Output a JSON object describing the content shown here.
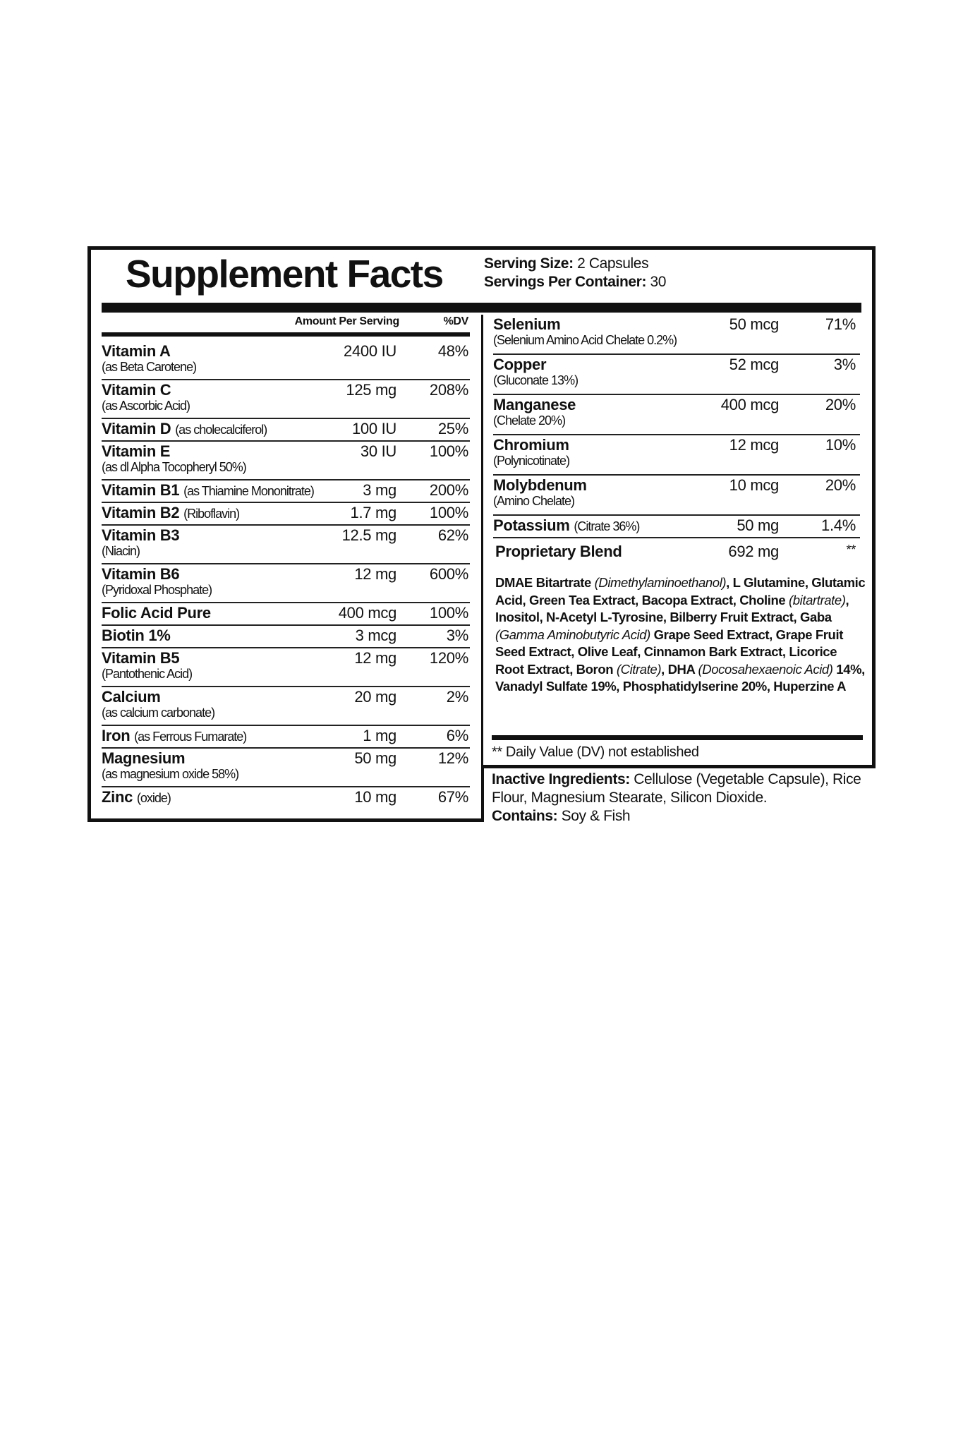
{
  "title": "Supplement Facts",
  "serving": {
    "size_label": "Serving Size:",
    "size_value": "2 Capsules",
    "per_container_label": "Servings Per Container:",
    "per_container_value": "30"
  },
  "column_headers": {
    "amount": "Amount Per Serving",
    "dv": "%DV"
  },
  "left_rows": [
    {
      "name": "Vitamin A",
      "sub": "(as Beta Carotene)",
      "inline": false,
      "amount": "2400 IU",
      "dv": "48%"
    },
    {
      "name": "Vitamin C",
      "sub": "(as Ascorbic Acid)",
      "inline": false,
      "amount": "125 mg",
      "dv": "208%"
    },
    {
      "name": "Vitamin D",
      "sub": "(as cholecalciferol)",
      "inline": true,
      "amount": "100 IU",
      "dv": "25%"
    },
    {
      "name": "Vitamin E",
      "sub": "(as dl Alpha Tocopheryl 50%)",
      "inline": false,
      "amount": "30 IU",
      "dv": "100%"
    },
    {
      "name": "Vitamin B1",
      "sub": "(as Thiamine Mononitrate)",
      "inline": true,
      "amount": "3 mg",
      "dv": "200%"
    },
    {
      "name": "Vitamin B2",
      "sub": "(Riboflavin)",
      "inline": true,
      "amount": "1.7 mg",
      "dv": "100%"
    },
    {
      "name": "Vitamin B3",
      "sub": "(Niacin)",
      "inline": false,
      "amount": "12.5 mg",
      "dv": "62%"
    },
    {
      "name": "Vitamin B6",
      "sub": "(Pyridoxal Phosphate)",
      "inline": false,
      "amount": "12 mg",
      "dv": "600%"
    },
    {
      "name": "Folic Acid Pure",
      "sub": "",
      "inline": true,
      "amount": "400 mcg",
      "dv": "100%"
    },
    {
      "name": "Biotin 1%",
      "sub": "",
      "inline": true,
      "amount": "3 mcg",
      "dv": "3%"
    },
    {
      "name": "Vitamin B5",
      "sub": "(Pantothenic Acid)",
      "inline": false,
      "amount": "12 mg",
      "dv": "120%"
    },
    {
      "name": "Calcium",
      "sub": "(as calcium carbonate)",
      "inline": false,
      "amount": "20 mg",
      "dv": "2%"
    },
    {
      "name": "Iron",
      "sub": "(as Ferrous Fumarate)",
      "inline": true,
      "amount": "1 mg",
      "dv": "6%"
    },
    {
      "name": "Magnesium",
      "sub": "(as magnesium oxide 58%)",
      "inline": false,
      "amount": "50 mg",
      "dv": "12%"
    },
    {
      "name": "Zinc",
      "sub": "(oxide)",
      "inline": true,
      "amount": "10 mg",
      "dv": "67%"
    }
  ],
  "right_rows": [
    {
      "name": "Selenium",
      "sub": "(Selenium Amino Acid Chelate 0.2%)",
      "inline": false,
      "amount": "50 mcg",
      "dv": "71%"
    },
    {
      "name": "Copper",
      "sub": "(Gluconate 13%)",
      "inline": false,
      "amount": "52 mcg",
      "dv": "3%"
    },
    {
      "name": "Manganese",
      "sub": "(Chelate 20%)",
      "inline": false,
      "amount": "400 mcg",
      "dv": "20%"
    },
    {
      "name": "Chromium",
      "sub": "(Polynicotinate)",
      "inline": false,
      "amount": "12 mcg",
      "dv": "10%"
    },
    {
      "name": "Molybdenum",
      "sub": "(Amino Chelate)",
      "inline": false,
      "amount": "10 mcg",
      "dv": "20%"
    },
    {
      "name": "Potassium",
      "sub": "(Citrate 36%)",
      "inline": true,
      "amount": "50 mg",
      "dv": "1.4%"
    }
  ],
  "blend": {
    "name": "Proprietary Blend",
    "amount": "692 mg",
    "dv": "**",
    "ingredients": [
      {
        "t": "DMAE Bitartrate ",
        "i": false
      },
      {
        "t": "(Dimethylaminoethanol)",
        "i": true
      },
      {
        "t": ", L Glutamine, Glutamic Acid, Green Tea Extract, Bacopa Extract, Choline ",
        "i": false
      },
      {
        "t": "(bitartrate)",
        "i": true
      },
      {
        "t": ", Inositol, N-Acetyl L-Tyrosine, Bilberry Fruit Extract, Gaba ",
        "i": false
      },
      {
        "t": "(Gamma Aminobutyric Acid)",
        "i": true
      },
      {
        "t": " Grape Seed Extract, Grape Fruit Seed Extract, Olive Leaf, Cinnamon Bark Extract, Licorice Root Extract, Boron ",
        "i": false
      },
      {
        "t": "(Citrate)",
        "i": true
      },
      {
        "t": ", DHA ",
        "i": false
      },
      {
        "t": "(Docosahexaenoic Acid)",
        "i": true
      },
      {
        "t": " 14%, Vanadyl Sulfate 19%, Phosphatidylserine 20%, Huperzine A",
        "i": false
      }
    ]
  },
  "dv_note": "** Daily Value (DV) not established",
  "inactive": {
    "label": "Inactive Ingredients:",
    "value": "Cellulose (Vegetable Capsule), Rice Flour, Magnesium Stearate, Silicon Dioxide.",
    "contains_label": "Contains:",
    "contains_value": "Soy & Fish"
  }
}
